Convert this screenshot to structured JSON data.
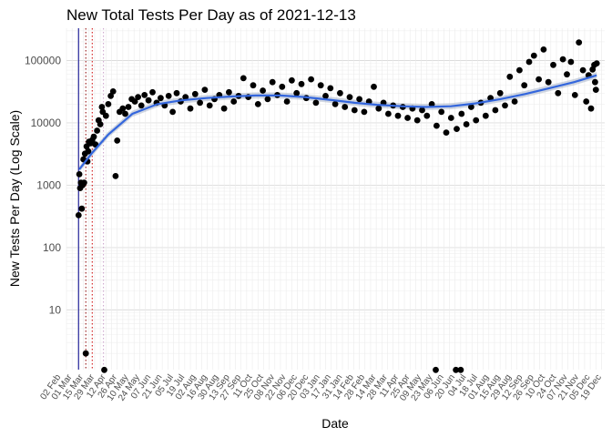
{
  "chart_data": {
    "type": "scatter",
    "title": "New Total Tests Per Day as of 2021-12-13",
    "xlabel": "Date",
    "ylabel": "New Tests Per Day (Log Scale)",
    "y_scale": "log10",
    "ylim": [
      1.1,
      330000
    ],
    "y_ticks": [
      10,
      100,
      1000,
      10000,
      100000
    ],
    "y_tick_labels": [
      "10",
      "100",
      "1000",
      "10000",
      "100000"
    ],
    "xlim": [
      "2020-02-23",
      "2021-12-23"
    ],
    "x_tick_labels": [
      "02 Feb",
      "01 Mar",
      "15 Mar",
      "29 Mar",
      "12 Apr",
      "26 Apr",
      "10 May",
      "24 May",
      "07 Jun",
      "21 Jun",
      "05 Jul",
      "19 Jul",
      "02 Aug",
      "16 Aug",
      "30 Aug",
      "13 Sep",
      "27 Sep",
      "11 Oct",
      "25 Oct",
      "08 Nov",
      "22 Nov",
      "06 Dec",
      "20 Dec",
      "03 Jan",
      "17 Jan",
      "31 Jan",
      "14 Feb",
      "28 Feb",
      "14 Mar",
      "28 Mar",
      "11 Apr",
      "25 Apr",
      "09 May",
      "23 May",
      "06 Jun",
      "20 Jun",
      "04 Jul",
      "18 Jul",
      "01 Aug",
      "15 Aug",
      "29 Aug",
      "12 Sep",
      "26 Sep",
      "10 Oct",
      "24 Oct",
      "07 Nov",
      "21 Nov",
      "05 Dec",
      "19 Dec"
    ],
    "grid": true,
    "vertical_lines": [
      {
        "date": "2020-03-09",
        "color": "#00008b",
        "style": "solid"
      },
      {
        "date": "2020-03-18",
        "color": "#8b0000",
        "style": "dotted"
      },
      {
        "date": "2020-03-26",
        "color": "#cc0000",
        "style": "dotted"
      },
      {
        "date": "2020-04-09",
        "color": "#c9a0c9",
        "style": "dotted"
      }
    ],
    "series": [
      {
        "points": [
          [
            "2020-03-09",
            330
          ],
          [
            "2020-03-10",
            1500
          ],
          [
            "2020-03-11",
            900
          ],
          [
            "2020-03-12",
            1100
          ],
          [
            "2020-03-13",
            420
          ],
          [
            "2020-03-14",
            1000
          ],
          [
            "2020-03-15",
            2600
          ],
          [
            "2020-03-16",
            1100
          ],
          [
            "2020-03-17",
            3200
          ],
          [
            "2020-03-18",
            2
          ],
          [
            "2020-03-19",
            4200
          ],
          [
            "2020-03-20",
            2400
          ],
          [
            "2020-03-21",
            3500
          ],
          [
            "2020-03-22",
            5000
          ],
          [
            "2020-03-24",
            4700
          ],
          [
            "2020-03-26",
            5300
          ],
          [
            "2020-03-28",
            6000
          ],
          [
            "2020-03-30",
            4500
          ],
          [
            "2020-04-01",
            7500
          ],
          [
            "2020-04-03",
            11000
          ],
          [
            "2020-04-05",
            9500
          ],
          [
            "2020-04-07",
            18000
          ],
          [
            "2020-04-08",
            15000
          ],
          [
            "2020-04-10",
            1
          ],
          [
            "2020-04-12",
            13000
          ],
          [
            "2020-04-15",
            20000
          ],
          [
            "2020-04-18",
            27000
          ],
          [
            "2020-04-21",
            32000
          ],
          [
            "2020-04-24",
            1400
          ],
          [
            "2020-04-26",
            5200
          ],
          [
            "2020-04-29",
            15000
          ],
          [
            "2020-05-03",
            17000
          ],
          [
            "2020-05-06",
            14000
          ],
          [
            "2020-05-10",
            18000
          ],
          [
            "2020-05-14",
            24000
          ],
          [
            "2020-05-18",
            22000
          ],
          [
            "2020-05-22",
            26000
          ],
          [
            "2020-05-26",
            19000
          ],
          [
            "2020-05-30",
            28000
          ],
          [
            "2020-06-04",
            23000
          ],
          [
            "2020-06-09",
            31000
          ],
          [
            "2020-06-14",
            21000
          ],
          [
            "2020-06-19",
            25000
          ],
          [
            "2020-06-24",
            19000
          ],
          [
            "2020-06-29",
            27000
          ],
          [
            "2020-07-04",
            15000
          ],
          [
            "2020-07-09",
            30000
          ],
          [
            "2020-07-14",
            22000
          ],
          [
            "2020-07-20",
            26000
          ],
          [
            "2020-07-26",
            17000
          ],
          [
            "2020-08-01",
            29000
          ],
          [
            "2020-08-07",
            21000
          ],
          [
            "2020-08-13",
            34000
          ],
          [
            "2020-08-19",
            19000
          ],
          [
            "2020-08-25",
            24000
          ],
          [
            "2020-08-31",
            28000
          ],
          [
            "2020-09-06",
            17000
          ],
          [
            "2020-09-12",
            31000
          ],
          [
            "2020-09-18",
            22000
          ],
          [
            "2020-09-24",
            27000
          ],
          [
            "2020-09-30",
            52000
          ],
          [
            "2020-10-06",
            26000
          ],
          [
            "2020-10-12",
            40000
          ],
          [
            "2020-10-18",
            20000
          ],
          [
            "2020-10-24",
            33000
          ],
          [
            "2020-10-30",
            24000
          ],
          [
            "2020-11-05",
            45000
          ],
          [
            "2020-11-11",
            28000
          ],
          [
            "2020-11-17",
            38000
          ],
          [
            "2020-11-23",
            22000
          ],
          [
            "2020-11-29",
            48000
          ],
          [
            "2020-12-05",
            30000
          ],
          [
            "2020-12-11",
            42000
          ],
          [
            "2020-12-17",
            25000
          ],
          [
            "2020-12-23",
            50000
          ],
          [
            "2020-12-29",
            21000
          ],
          [
            "2021-01-04",
            40000
          ],
          [
            "2021-01-10",
            27000
          ],
          [
            "2021-01-16",
            36000
          ],
          [
            "2021-01-22",
            20000
          ],
          [
            "2021-01-28",
            30000
          ],
          [
            "2021-02-03",
            18000
          ],
          [
            "2021-02-09",
            26000
          ],
          [
            "2021-02-15",
            16000
          ],
          [
            "2021-02-21",
            24000
          ],
          [
            "2021-02-27",
            15000
          ],
          [
            "2021-03-05",
            22000
          ],
          [
            "2021-03-11",
            38000
          ],
          [
            "2021-03-17",
            17000
          ],
          [
            "2021-03-23",
            21000
          ],
          [
            "2021-03-29",
            14000
          ],
          [
            "2021-04-04",
            19000
          ],
          [
            "2021-04-10",
            13000
          ],
          [
            "2021-04-16",
            18000
          ],
          [
            "2021-04-22",
            12000
          ],
          [
            "2021-04-28",
            17000
          ],
          [
            "2021-05-04",
            11000
          ],
          [
            "2021-05-10",
            16000
          ],
          [
            "2021-05-16",
            13000
          ],
          [
            "2021-05-22",
            20000
          ],
          [
            "2021-05-27",
            1
          ],
          [
            "2021-05-28",
            9000
          ],
          [
            "2021-06-03",
            15000
          ],
          [
            "2021-06-09",
            7000
          ],
          [
            "2021-06-15",
            12000
          ],
          [
            "2021-06-21",
            1
          ],
          [
            "2021-06-22",
            8000
          ],
          [
            "2021-06-27",
            1
          ],
          [
            "2021-06-28",
            14000
          ],
          [
            "2021-07-04",
            9500
          ],
          [
            "2021-07-10",
            18000
          ],
          [
            "2021-07-16",
            11000
          ],
          [
            "2021-07-22",
            21000
          ],
          [
            "2021-07-28",
            13000
          ],
          [
            "2021-08-03",
            25000
          ],
          [
            "2021-08-09",
            16000
          ],
          [
            "2021-08-15",
            30000
          ],
          [
            "2021-08-21",
            19000
          ],
          [
            "2021-08-27",
            55000
          ],
          [
            "2021-09-02",
            22000
          ],
          [
            "2021-09-08",
            70000
          ],
          [
            "2021-09-14",
            40000
          ],
          [
            "2021-09-20",
            95000
          ],
          [
            "2021-09-26",
            120000
          ],
          [
            "2021-10-02",
            50000
          ],
          [
            "2021-10-08",
            150000
          ],
          [
            "2021-10-14",
            45000
          ],
          [
            "2021-10-20",
            85000
          ],
          [
            "2021-10-26",
            30000
          ],
          [
            "2021-11-01",
            105000
          ],
          [
            "2021-11-06",
            60000
          ],
          [
            "2021-11-11",
            95000
          ],
          [
            "2021-11-16",
            28000
          ],
          [
            "2021-11-21",
            195000
          ],
          [
            "2021-11-26",
            70000
          ],
          [
            "2021-11-30",
            22000
          ],
          [
            "2021-12-03",
            58000
          ],
          [
            "2021-12-06",
            17000
          ],
          [
            "2021-12-08",
            72000
          ],
          [
            "2021-12-10",
            85000
          ],
          [
            "2021-12-11",
            45000
          ],
          [
            "2021-12-12",
            34000
          ],
          [
            "2021-12-13",
            90000
          ]
        ],
        "color": "#000000"
      }
    ],
    "trend": {
      "color": "#3366dd",
      "points": [
        [
          "2020-03-10",
          1800
        ],
        [
          "2020-03-25",
          3200
        ],
        [
          "2020-04-15",
          6500
        ],
        [
          "2020-05-15",
          14000
        ],
        [
          "2020-06-15",
          20000
        ],
        [
          "2020-07-15",
          23000
        ],
        [
          "2020-08-15",
          25000
        ],
        [
          "2020-09-15",
          26500
        ],
        [
          "2020-10-15",
          27500
        ],
        [
          "2020-11-15",
          27500
        ],
        [
          "2020-12-15",
          26000
        ],
        [
          "2021-01-15",
          23500
        ],
        [
          "2021-02-15",
          21000
        ],
        [
          "2021-03-15",
          19500
        ],
        [
          "2021-04-15",
          18500
        ],
        [
          "2021-05-15",
          18000
        ],
        [
          "2021-06-15",
          18500
        ],
        [
          "2021-07-15",
          20500
        ],
        [
          "2021-08-15",
          24000
        ],
        [
          "2021-09-15",
          29000
        ],
        [
          "2021-10-15",
          36000
        ],
        [
          "2021-11-15",
          45000
        ],
        [
          "2021-12-13",
          58000
        ]
      ]
    }
  }
}
